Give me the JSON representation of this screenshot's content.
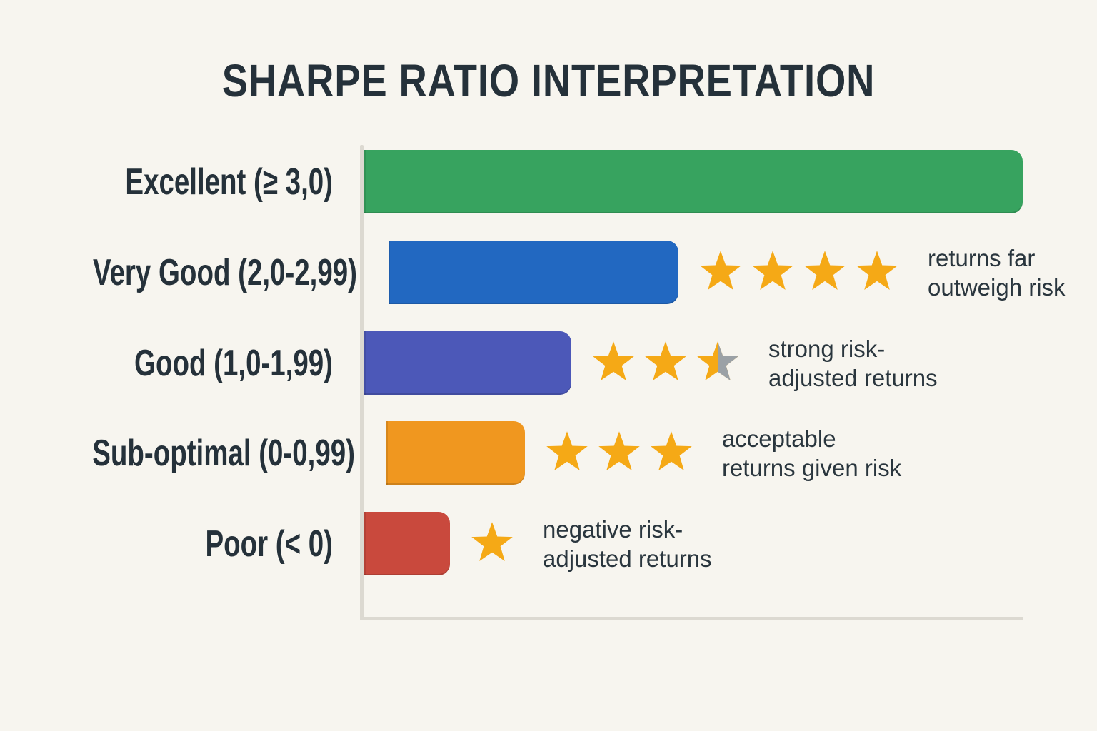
{
  "title": "SHARPE RATIO INTERPRETATION",
  "colors": {
    "background": "#f7f5ef",
    "text": "#25313a",
    "axis": "#dcd9d1",
    "star_full": "#f5a916",
    "star_empty": "#9ba1a6"
  },
  "chart_data": {
    "type": "bar",
    "orientation": "horizontal",
    "title": "SHARPE RATIO INTERPRETATION",
    "xlabel": "",
    "ylabel": "",
    "grid": false,
    "value_unit": "relative bar length, % of longest bar",
    "categories": [
      "Excellent (≥ 3,0)",
      "Very Good (2,0-2,99)",
      "Good (1,0-1,99)",
      "Sub-optimal (0-0,99)",
      "Poor (< 0)"
    ],
    "values": [
      100,
      44,
      31.5,
      21,
      13
    ],
    "rows": [
      {
        "label": "Excellent (≥ 3,0)",
        "value_pct": 100,
        "color": "#37a35f",
        "stars": 0,
        "annotation": []
      },
      {
        "label": "Very Good (2,0-2,99)",
        "value_pct": 44,
        "color": "#2268c1",
        "stars": 4,
        "annotation": [
          "returns far",
          "outweigh risk"
        ]
      },
      {
        "label": "Good (1,0-1,99)",
        "value_pct": 31.5,
        "color": "#4c58b8",
        "stars": 2.5,
        "annotation": [
          "strong risk-",
          "adjusted returns"
        ]
      },
      {
        "label": "Sub-optimal (0-0,99)",
        "value_pct": 21,
        "color": "#f0971f",
        "stars": 3,
        "annotation": [
          "acceptable",
          "returns given risk"
        ]
      },
      {
        "label": "Poor (< 0)",
        "value_pct": 13,
        "color": "#c9493d",
        "stars": 1,
        "annotation": [
          "negative risk-",
          "adjusted returns"
        ]
      }
    ]
  }
}
